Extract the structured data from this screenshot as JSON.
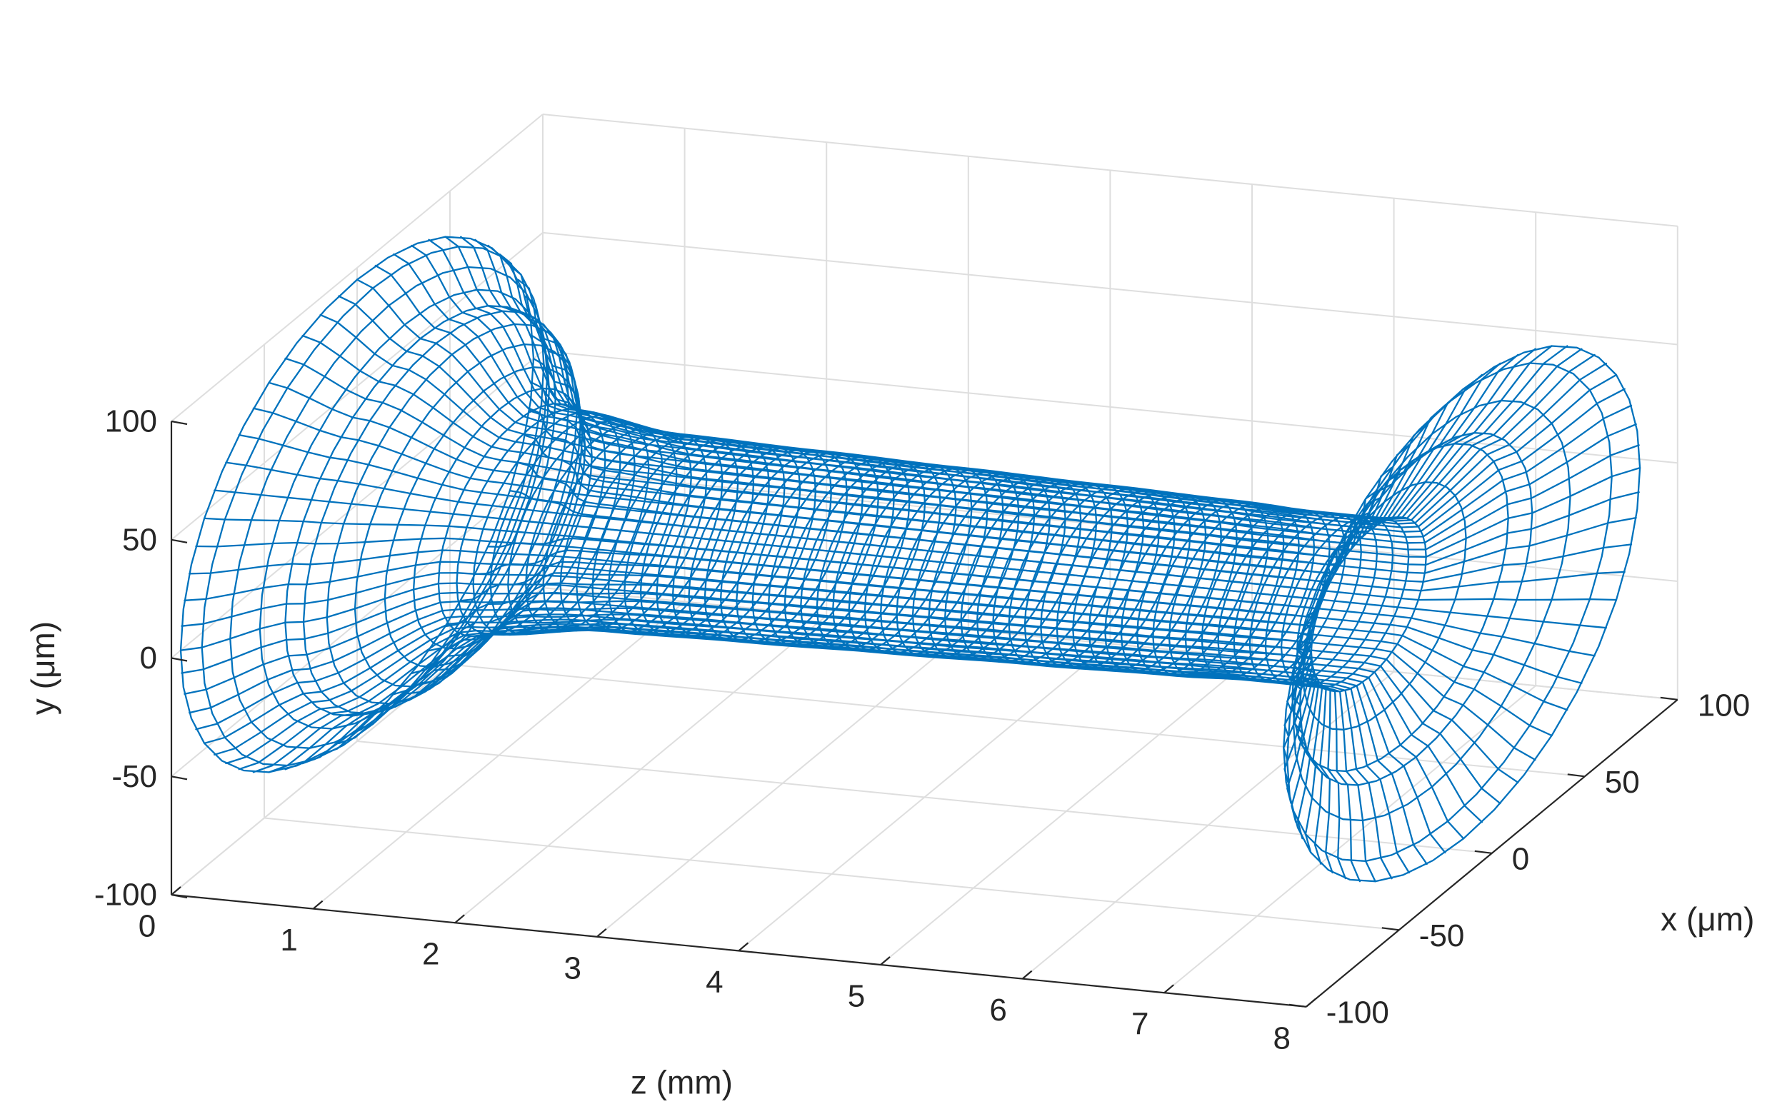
{
  "chart_data": {
    "type": "surface-mesh",
    "title": "",
    "xlabel": "x (μm)",
    "ylabel": "y (μm)",
    "zlabel": "z (mm)",
    "x_ticks": [
      "-100",
      "-50",
      "0",
      "50",
      "100"
    ],
    "y_ticks": [
      "-100",
      "-50",
      "0",
      "50",
      "100"
    ],
    "z_ticks": [
      "0",
      "1",
      "2",
      "3",
      "4",
      "5",
      "6",
      "7",
      "8"
    ],
    "xlim": [
      -100,
      100
    ],
    "ylim": [
      -100,
      100
    ],
    "zlim": [
      0,
      8
    ],
    "grid": true,
    "mesh_color": "#0072BD",
    "z_samples": [
      0.0,
      0.5,
      1.2,
      2.0,
      3.0,
      4.0,
      5.0,
      6.0,
      6.5,
      7.1,
      7.4,
      7.8
    ],
    "radius_samples_um": [
      95,
      72,
      40,
      35,
      34,
      33,
      32,
      31,
      30,
      30,
      60,
      95
    ]
  }
}
